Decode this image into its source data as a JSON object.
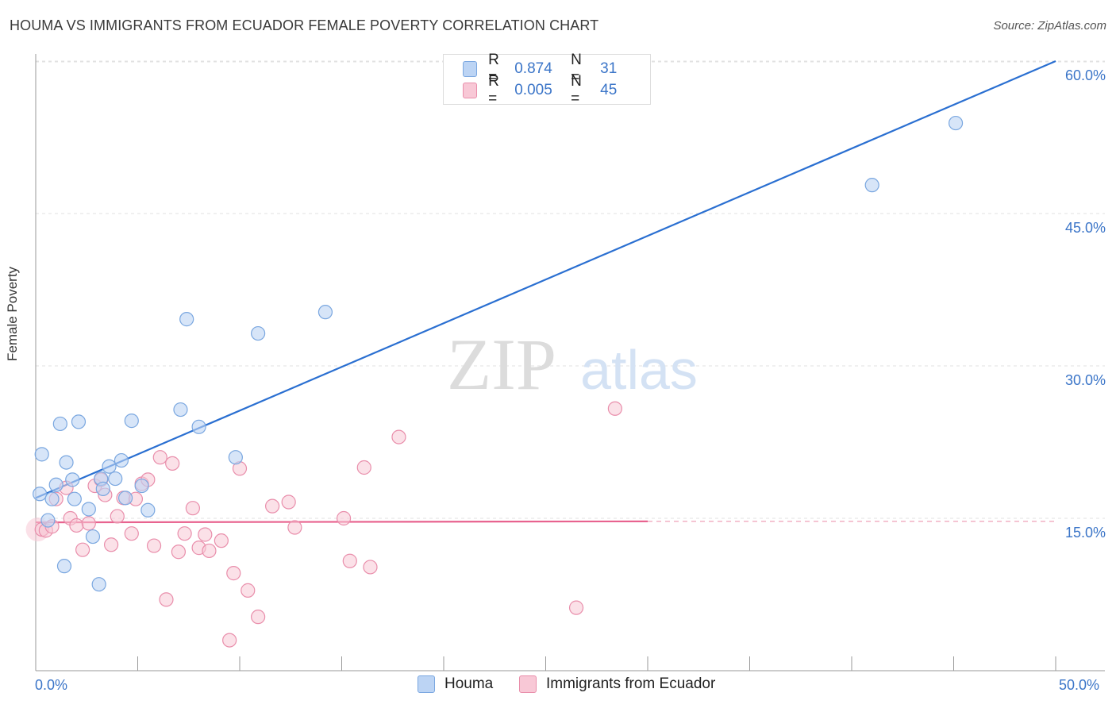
{
  "header": {
    "title": "HOUMA VS IMMIGRANTS FROM ECUADOR FEMALE POVERTY CORRELATION CHART",
    "source": "Source: ZipAtlas.com"
  },
  "legend": {
    "series1": {
      "r_label": "R =",
      "r_value": "0.874",
      "n_label": "N =",
      "n_value": "31"
    },
    "series2": {
      "r_label": "R =",
      "r_value": "0.005",
      "n_label": "N =",
      "n_value": "45"
    }
  },
  "bottom_legend": {
    "series1": "Houma",
    "series2": "Immigrants from Ecuador"
  },
  "axes": {
    "ylabel": "Female Poverty",
    "x_min_label": "0.0%",
    "x_max_label": "50.0%",
    "y_ticks": [
      "15.0%",
      "30.0%",
      "45.0%",
      "60.0%"
    ]
  },
  "watermark": {
    "zip": "ZIP",
    "atlas": "atlas"
  },
  "colors": {
    "houma_fill": "#bcd4f4",
    "houma_stroke": "#7aa7e0",
    "houma_line": "#2a6fd1",
    "ecuador_fill": "#f8c8d6",
    "ecuador_stroke": "#e98eab",
    "ecuador_line": "#e8638f",
    "axis_text": "#3b75c8",
    "grid": "#e2e2e2"
  },
  "chart_data": {
    "type": "scatter",
    "title": "HOUMA VS IMMIGRANTS FROM ECUADOR FEMALE POVERTY CORRELATION CHART",
    "xlabel": "",
    "ylabel": "Female Poverty",
    "xlim": [
      0,
      50
    ],
    "ylim": [
      0,
      60
    ],
    "x_ticks": [
      0,
      5,
      10,
      15,
      20,
      25,
      30,
      35,
      40,
      45,
      50
    ],
    "y_gridlines": [
      15,
      30,
      45,
      60
    ],
    "series": [
      {
        "name": "Houma",
        "r": 0.874,
        "n": 31,
        "trend": {
          "x0": 0,
          "y0": 17.0,
          "x1": 50,
          "y1": 60.0
        },
        "points": [
          [
            0.2,
            17.4
          ],
          [
            0.3,
            21.3
          ],
          [
            0.6,
            14.8
          ],
          [
            0.8,
            16.9
          ],
          [
            1.0,
            18.3
          ],
          [
            1.2,
            24.3
          ],
          [
            1.4,
            10.3
          ],
          [
            1.5,
            20.5
          ],
          [
            1.8,
            18.8
          ],
          [
            1.9,
            16.9
          ],
          [
            2.1,
            24.5
          ],
          [
            2.6,
            15.9
          ],
          [
            2.8,
            13.2
          ],
          [
            3.1,
            8.5
          ],
          [
            3.2,
            18.9
          ],
          [
            3.3,
            17.9
          ],
          [
            3.6,
            20.1
          ],
          [
            3.9,
            18.9
          ],
          [
            4.2,
            20.7
          ],
          [
            4.4,
            17.0
          ],
          [
            4.7,
            24.6
          ],
          [
            5.2,
            18.2
          ],
          [
            5.5,
            15.8
          ],
          [
            7.1,
            25.7
          ],
          [
            7.4,
            34.6
          ],
          [
            8.0,
            24.0
          ],
          [
            9.8,
            21.0
          ],
          [
            10.9,
            33.2
          ],
          [
            14.2,
            35.3
          ],
          [
            41.0,
            47.8
          ],
          [
            45.1,
            53.9
          ]
        ]
      },
      {
        "name": "Immigrants from Ecuador",
        "r": 0.005,
        "n": 45,
        "trend": {
          "x0": 0,
          "y0": 14.6,
          "x1": 30,
          "y1": 14.7,
          "dashed_to": 50
        },
        "points": [
          [
            0.3,
            13.9
          ],
          [
            0.5,
            13.8
          ],
          [
            0.8,
            14.2
          ],
          [
            1.0,
            16.9
          ],
          [
            1.5,
            18.0
          ],
          [
            1.7,
            15.0
          ],
          [
            2.0,
            14.3
          ],
          [
            2.3,
            11.9
          ],
          [
            2.6,
            14.5
          ],
          [
            2.9,
            18.2
          ],
          [
            3.2,
            18.8
          ],
          [
            3.4,
            17.3
          ],
          [
            3.7,
            12.4
          ],
          [
            4.0,
            15.2
          ],
          [
            4.3,
            17.0
          ],
          [
            4.7,
            13.5
          ],
          [
            4.9,
            16.9
          ],
          [
            5.2,
            18.4
          ],
          [
            5.5,
            18.8
          ],
          [
            5.8,
            12.3
          ],
          [
            6.1,
            21.0
          ],
          [
            6.4,
            7.0
          ],
          [
            6.7,
            20.4
          ],
          [
            7.0,
            11.7
          ],
          [
            7.3,
            13.5
          ],
          [
            7.7,
            16.0
          ],
          [
            8.0,
            12.1
          ],
          [
            8.3,
            13.4
          ],
          [
            8.5,
            11.8
          ],
          [
            9.1,
            12.8
          ],
          [
            9.5,
            3.0
          ],
          [
            9.7,
            9.6
          ],
          [
            10.0,
            19.9
          ],
          [
            10.4,
            7.9
          ],
          [
            10.9,
            5.3
          ],
          [
            11.6,
            16.2
          ],
          [
            12.4,
            16.6
          ],
          [
            12.7,
            14.1
          ],
          [
            15.1,
            15.0
          ],
          [
            15.4,
            10.8
          ],
          [
            16.1,
            20.0
          ],
          [
            16.4,
            10.2
          ],
          [
            17.8,
            23.0
          ],
          [
            26.5,
            6.2
          ],
          [
            28.4,
            25.8
          ]
        ]
      }
    ]
  }
}
